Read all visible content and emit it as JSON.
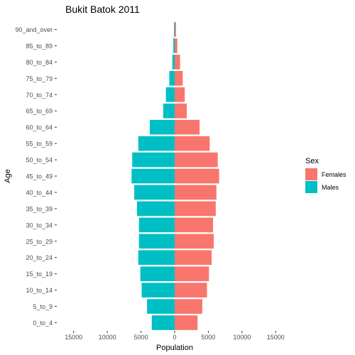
{
  "chart_data": {
    "type": "bar",
    "orientation": "horizontal",
    "title": "Bukit Batok  2011",
    "xlabel": "Population",
    "ylabel": "Age",
    "xlim": [
      -17500,
      17500
    ],
    "xticks": [
      {
        "value": -15000,
        "label": "15000"
      },
      {
        "value": -10000,
        "label": "10000"
      },
      {
        "value": -5000,
        "label": "5000"
      },
      {
        "value": 0,
        "label": "0"
      },
      {
        "value": 5000,
        "label": "5000"
      },
      {
        "value": 10000,
        "label": "10000"
      },
      {
        "value": 15000,
        "label": "15000"
      }
    ],
    "categories": [
      "0_to_4",
      "5_to_9",
      "10_to_14",
      "15_to_19",
      "20_to_24",
      "25_to_29",
      "30_to_34",
      "35_to_39",
      "40_to_44",
      "45_to_49",
      "50_to_54",
      "55_to_59",
      "60_to_64",
      "65_to_69",
      "70_to_74",
      "75_to_79",
      "80_to_84",
      "85_to_89",
      "90_and_over"
    ],
    "series": [
      {
        "name": "Females",
        "color": "#F8766D",
        "values": [
          3400,
          4100,
          4800,
          5100,
          5500,
          5800,
          5700,
          6100,
          6200,
          6600,
          6400,
          5200,
          3700,
          1800,
          1500,
          1200,
          800,
          400,
          200
        ]
      },
      {
        "name": "Males",
        "color": "#00BFC4",
        "values": [
          -3400,
          -4100,
          -4900,
          -5100,
          -5400,
          -5300,
          -5300,
          -5600,
          -6000,
          -6400,
          -6300,
          -5400,
          -3700,
          -1700,
          -1300,
          -800,
          -350,
          -200,
          -100
        ]
      }
    ],
    "legend": {
      "title": "Sex",
      "position": "right",
      "entries": [
        {
          "label": "Females",
          "color": "#F8766D"
        },
        {
          "label": "Males",
          "color": "#00BFC4"
        }
      ]
    },
    "grid": false
  }
}
